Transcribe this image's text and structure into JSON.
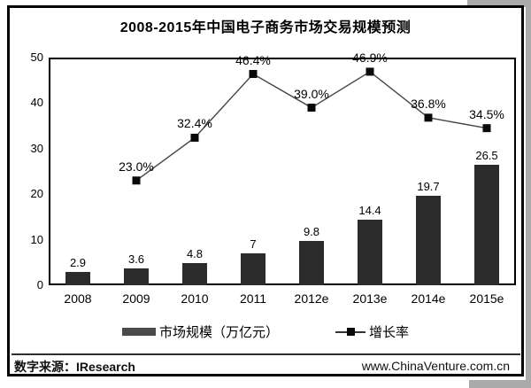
{
  "title": "2008-2015年中国电子商务市场交易规模预测",
  "chart_data": {
    "type": "bar",
    "subtype": "bar+line combo",
    "title": "2008-2015年中国电子商务市场交易规模预测",
    "categories": [
      "2008",
      "2009",
      "2010",
      "2011",
      "2012e",
      "2013e",
      "2014e",
      "2015e"
    ],
    "series": [
      {
        "name": "市场规模（万亿元）",
        "type": "bar",
        "values": [
          2.9,
          3.6,
          4.8,
          7,
          9.8,
          14.4,
          19.7,
          26.5
        ],
        "labels": [
          "2.9",
          "3.6",
          "4.8",
          "7",
          "9.8",
          "14.4",
          "19.7",
          "26.5"
        ]
      },
      {
        "name": "增长率",
        "type": "line",
        "values": [
          null,
          23.0,
          32.4,
          46.4,
          39.0,
          46.9,
          36.8,
          34.5
        ],
        "labels": [
          null,
          "23.0%",
          "32.4%",
          "46.4%",
          "39.0%",
          "46.9%",
          "36.8%",
          "34.5%"
        ]
      }
    ],
    "xlabel": "",
    "ylabel": "",
    "ylim": [
      0,
      50
    ],
    "yticks": [
      0,
      10,
      20,
      30,
      40,
      50
    ],
    "grid": false,
    "legend_position": "bottom"
  },
  "legend": {
    "market_scale": "市场规模（万亿元）",
    "growth_rate": "增长率"
  },
  "footer": {
    "source": "数字来源：IResearch",
    "website": "www.ChinaVenture.com.cn"
  },
  "colors": {
    "bar": "#2b2b2b",
    "line": "#444444",
    "marker": "#0a0a0a",
    "frame": "#000000",
    "shadow": "#aaaaaa",
    "text": "#000000"
  }
}
